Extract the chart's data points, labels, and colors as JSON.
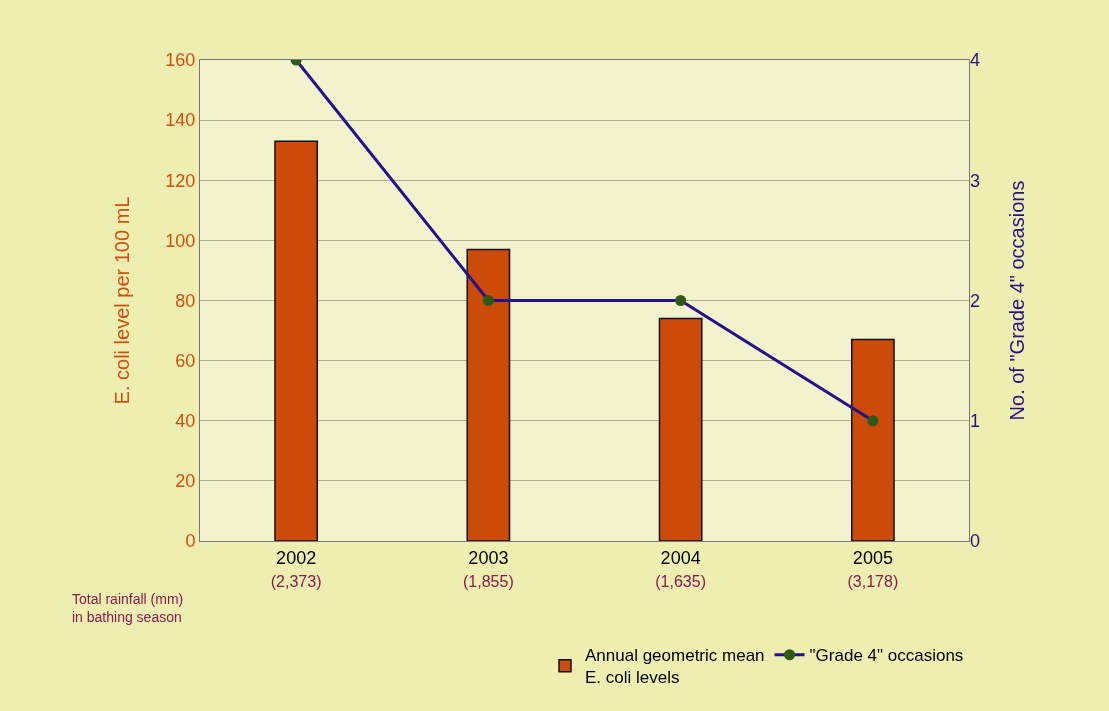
{
  "chart_data": {
    "type": "bar",
    "ylabel": "E. coli level per 100 mL",
    "y2label": "No. of \"Grade 4\" occasions",
    "categories": [
      "2002\n(2,373)",
      "2003\n(1,855)",
      "2004\n(1,635)",
      "2005\n(3,178)"
    ],
    "series": [
      {
        "name": "Annual geometric mean\nE. coli levels",
        "color": "#cc4b08",
        "values": [
          133,
          97,
          74,
          67
        ]
      },
      {
        "name": "\"Grade 4\" occasions",
        "type": "line",
        "axis": "y2",
        "color": "#24128a",
        "colors": [
          "#2e5a18",
          "#2e5a18",
          "#2e5a18",
          "#2e5a18"
        ],
        "marker": "circle",
        "values": [
          4,
          2,
          2,
          1
        ]
      }
    ],
    "ylim": [
      0,
      160
    ],
    "yticks": [
      0,
      20,
      40,
      60,
      80,
      100,
      120,
      140,
      160
    ],
    "y2lim": [
      0,
      4
    ],
    "y2ticks": [
      0,
      1,
      2,
      3,
      4
    ],
    "grid": "y",
    "legend": "bottom right",
    "annotations": [
      "Total rainfall (mm)\nin bathing season"
    ]
  }
}
